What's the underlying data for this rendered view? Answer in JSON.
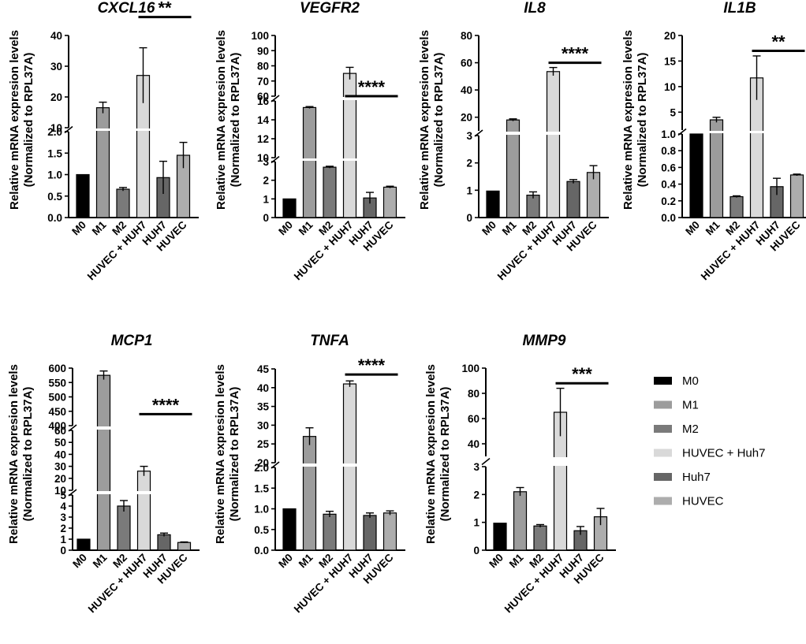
{
  "chart_data": [
    {
      "type": "bar",
      "title": "CXCL16",
      "ylabel": "Relative mRNA expresion levels",
      "ylabel2": "(Normalized to RPL37A)",
      "categories": [
        "M0",
        "M1",
        "M2",
        "HUVEC + HUH7",
        "HUH7",
        "HUVEC"
      ],
      "values": [
        1.0,
        16.5,
        0.66,
        27.0,
        0.93,
        1.45
      ],
      "errors": [
        0,
        1.8,
        0.04,
        9.0,
        0.38,
        0.3
      ],
      "segments": [
        {
          "range": [
            0,
            2.0
          ],
          "ticks": [
            "0.0",
            "0.5",
            "1.0",
            "1.5",
            "2.0"
          ]
        },
        {
          "range": [
            10,
            40
          ],
          "ticks": [
            "10",
            "20",
            "30",
            "40"
          ]
        }
      ],
      "significance": {
        "label": "**",
        "from": "HUVEC + HUH7",
        "to": "HUVEC",
        "y": 46
      }
    },
    {
      "type": "bar",
      "title": "VEGFR2",
      "ylabel": "Relative mRNA expresion levels",
      "ylabel2": "(Normalized to RPL37A)",
      "categories": [
        "M0",
        "M1",
        "M2",
        "HUVEC + HUH7",
        "HUH7",
        "HUVEC"
      ],
      "values": [
        1.0,
        15.3,
        2.7,
        75.0,
        1.05,
        1.63
      ],
      "errors": [
        0,
        0.1,
        0.05,
        4.0,
        0.3,
        0.05
      ],
      "segments": [
        {
          "range": [
            0,
            3
          ],
          "ticks": [
            "0",
            "1",
            "2",
            "3"
          ]
        },
        {
          "range": [
            10,
            16
          ],
          "ticks": [
            "10",
            "12",
            "14",
            "16"
          ]
        },
        {
          "range": [
            60,
            100
          ],
          "ticks": [
            "60",
            "70",
            "80",
            "90",
            "100"
          ]
        }
      ],
      "significance": {
        "label": "****",
        "from": "HUVEC + HUH7",
        "to": "HUVEC",
        "y": 46
      }
    },
    {
      "type": "bar",
      "title": "IL8",
      "ylabel": "Relative mRNA expresion levels",
      "ylabel2": "(Normalized to RPL37A)",
      "categories": [
        "M0",
        "M1",
        "M2",
        "HUVEC + HUH7",
        "HUH7",
        "HUVEC"
      ],
      "values": [
        0.97,
        18.0,
        0.82,
        53.5,
        1.32,
        1.65
      ],
      "errors": [
        0,
        0.8,
        0.12,
        3.0,
        0.07,
        0.25
      ],
      "segments": [
        {
          "range": [
            0,
            3
          ],
          "ticks": [
            "0",
            "1",
            "2",
            "3"
          ]
        },
        {
          "range": [
            10,
            80
          ],
          "ticks": [
            "20",
            "40",
            "60",
            "80"
          ]
        }
      ],
      "significance": {
        "label": "****",
        "from": "HUVEC + HUH7",
        "to": "HUVEC",
        "y": 60
      }
    },
    {
      "type": "bar",
      "title": "IL1B",
      "ylabel": "Relative mRNA expresion levels",
      "ylabel2": "(Normalized to RPL37A)",
      "categories": [
        "M0",
        "M1",
        "M2",
        "HUVEC + HUH7",
        "HUH7",
        "HUVEC"
      ],
      "values": [
        1.0,
        3.5,
        0.25,
        11.7,
        0.37,
        0.51
      ],
      "errors": [
        0,
        0.5,
        0.01,
        4.3,
        0.1,
        0.01
      ],
      "segments": [
        {
          "range": [
            0,
            1.0
          ],
          "ticks": [
            "0.0",
            "0.2",
            "0.4",
            "0.6",
            "0.8",
            "1.0"
          ]
        },
        {
          "range": [
            1.5,
            20
          ],
          "ticks": [
            "5",
            "10",
            "15",
            "20"
          ]
        }
      ],
      "significance": {
        "label": "**",
        "from": "HUVEC + HUH7",
        "to": "HUVEC",
        "y": 17
      }
    },
    {
      "type": "bar",
      "title": "MCP1",
      "ylabel": "Relative mRNA expresion levels",
      "ylabel2": "(Normalized to RPL37A)",
      "categories": [
        "M0",
        "M1",
        "M2",
        "HUVEC + HUH7",
        "HUH7",
        "HUVEC"
      ],
      "values": [
        1.0,
        575,
        4.0,
        26,
        1.4,
        0.7
      ],
      "errors": [
        0,
        15,
        0.5,
        4,
        0.15,
        0.05
      ],
      "segments": [
        {
          "range": [
            0,
            5
          ],
          "ticks": [
            "0",
            "1",
            "2",
            "3",
            "4",
            "5"
          ]
        },
        {
          "range": [
            10,
            60
          ],
          "ticks": [
            "10",
            "20",
            "30",
            "40",
            "50",
            "60"
          ]
        },
        {
          "range": [
            400,
            600
          ],
          "ticks": [
            "400",
            "450",
            "500",
            "550",
            "600"
          ]
        }
      ],
      "significance": {
        "label": "****",
        "from": "HUVEC + HUH7",
        "to": "HUVEC",
        "y": 440
      }
    },
    {
      "type": "bar",
      "title": "TNFA",
      "ylabel": "Relative mRNA expresion levels",
      "ylabel2": "(Normalized to RPL37A)",
      "categories": [
        "M0",
        "M1",
        "M2",
        "HUVEC + HUH7",
        "HUH7",
        "HUVEC"
      ],
      "values": [
        1.0,
        27.0,
        0.87,
        41.0,
        0.84,
        0.9
      ],
      "errors": [
        0,
        2.3,
        0.07,
        0.8,
        0.06,
        0.05
      ],
      "segments": [
        {
          "range": [
            0,
            2.0
          ],
          "ticks": [
            "0.0",
            "0.5",
            "1.0",
            "1.5",
            "2.0"
          ]
        },
        {
          "range": [
            20,
            45
          ],
          "ticks": [
            "20",
            "25",
            "30",
            "35",
            "40",
            "45"
          ]
        }
      ],
      "significance": {
        "label": "****",
        "from": "HUVEC + HUH7",
        "to": "HUVEC",
        "y": 43.5
      }
    },
    {
      "type": "bar",
      "title": "MMP9",
      "ylabel": "Relative mRNA expresion levels",
      "ylabel2": "(Normalized to RPL37A)",
      "categories": [
        "M0",
        "M1",
        "M2",
        "HUVEC + HUH7",
        "HUH7",
        "HUVEC"
      ],
      "values": [
        0.97,
        2.1,
        0.87,
        65.0,
        0.7,
        1.2
      ],
      "errors": [
        0,
        0.15,
        0.05,
        19.0,
        0.15,
        0.3
      ],
      "segments": [
        {
          "range": [
            0,
            3
          ],
          "ticks": [
            "0",
            "1",
            "2",
            "3"
          ]
        },
        {
          "range": [
            30,
            100
          ],
          "ticks": [
            "40",
            "60",
            "80",
            "100"
          ]
        }
      ],
      "significance": {
        "label": "***",
        "from": "HUVEC + HUH7",
        "to": "HUVEC",
        "y": 88
      }
    }
  ],
  "legend": {
    "placement": "right",
    "items": [
      {
        "label": "M0",
        "color": "#000000"
      },
      {
        "label": "M1",
        "color": "#9c9c9c"
      },
      {
        "label": "M2",
        "color": "#7a7a7a"
      },
      {
        "label": "HUVEC + Huh7",
        "color": "#d9d9d9"
      },
      {
        "label": "Huh7",
        "color": "#666666"
      },
      {
        "label": "HUVEC",
        "color": "#adadad"
      }
    ]
  }
}
